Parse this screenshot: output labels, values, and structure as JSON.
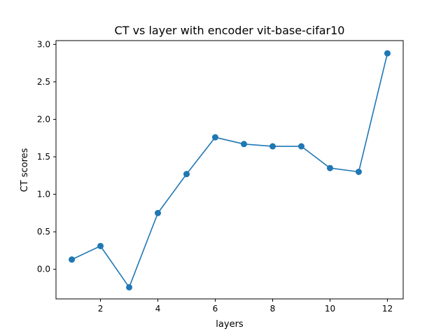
{
  "chart_data": {
    "type": "line",
    "title": "CT vs layer with encoder vit-base-cifar10",
    "xlabel": "layers",
    "ylabel": "CT scores",
    "x": [
      1,
      2,
      3,
      4,
      5,
      6,
      7,
      8,
      9,
      10,
      11,
      12
    ],
    "series": [
      {
        "values": [
          0.13,
          0.31,
          -0.24,
          0.75,
          1.27,
          1.76,
          1.67,
          1.64,
          1.64,
          1.35,
          1.3,
          2.88
        ]
      }
    ],
    "xlim": [
      0.45,
      12.55
    ],
    "ylim": [
      -0.395,
      3.05
    ],
    "xticks": [
      2,
      4,
      6,
      8,
      10,
      12
    ],
    "xtick_labels": [
      "2",
      "4",
      "6",
      "8",
      "10",
      "12"
    ],
    "yticks": [
      0.0,
      0.5,
      1.0,
      1.5,
      2.0,
      2.5,
      3.0
    ],
    "ytick_labels": [
      "0.0",
      "0.5",
      "1.0",
      "1.5",
      "2.0",
      "2.5",
      "3.0"
    ],
    "grid": false,
    "line_color": "#1f77b4",
    "marker": "circle"
  }
}
